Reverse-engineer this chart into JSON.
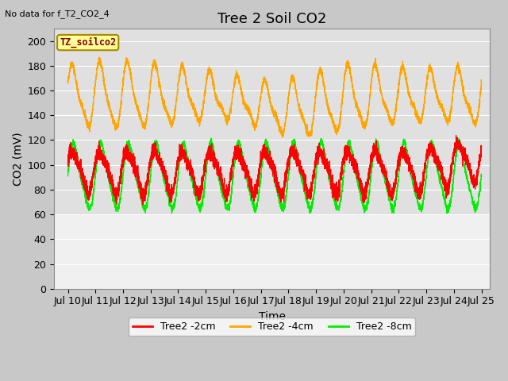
{
  "title": "Tree 2 Soil CO2",
  "subtitle": "No data for f_T2_CO2_4",
  "ylabel": "CO2 (mV)",
  "xlabel": "Time",
  "legend_label": "TZ_soilco2",
  "xlim_days": [
    9.5,
    25.3
  ],
  "ylim": [
    0,
    210
  ],
  "yticks": [
    0,
    20,
    40,
    60,
    80,
    100,
    120,
    140,
    160,
    180,
    200
  ],
  "xtick_labels": [
    "Jul 10",
    "Jul 11",
    "Jul 12",
    "Jul 13",
    "Jul 14",
    "Jul 15",
    "Jul 16",
    "Jul 17",
    "Jul 18",
    "Jul 19",
    "Jul 20",
    "Jul 21",
    "Jul 22",
    "Jul 23",
    "Jul 24",
    "Jul 25"
  ],
  "xtick_positions": [
    10,
    11,
    12,
    13,
    14,
    15,
    16,
    17,
    18,
    19,
    20,
    21,
    22,
    23,
    24,
    25
  ],
  "line_colors": [
    "#ff0000",
    "#ffa500",
    "#00ee00"
  ],
  "line_labels": [
    "Tree2 -2cm",
    "Tree2 -4cm",
    "Tree2 -8cm"
  ],
  "fig_bg_color": "#c8c8c8",
  "plot_bg_upper": "#e0e0e0",
  "plot_bg_lower": "#f0f0f0",
  "grid_color": "#ffffff",
  "title_fontsize": 13,
  "label_fontsize": 10,
  "tick_fontsize": 9,
  "data_threshold": 60
}
